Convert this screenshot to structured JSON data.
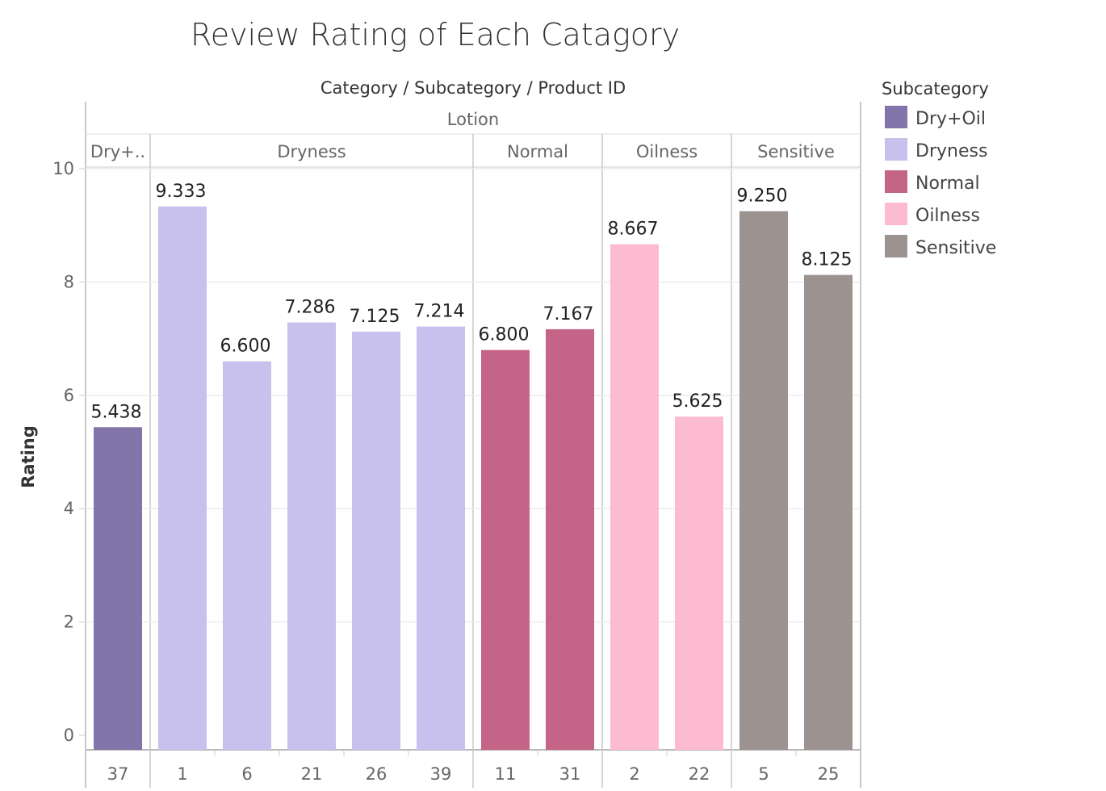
{
  "chart_data": {
    "type": "bar",
    "title": "Review Rating of Each Catagory",
    "column_header": "Category / Subcategory / Product ID",
    "category": "Lotion",
    "subcategory_labels": [
      "Dry+..",
      "Dryness",
      "Normal",
      "Oilness",
      "Sensitive"
    ],
    "ylabel": "Rating",
    "ylim": [
      0,
      10
    ],
    "yticks": [
      0,
      2,
      4,
      6,
      8,
      10
    ],
    "grid": true,
    "legend_position": "right",
    "bars": [
      {
        "product_id": "37",
        "subcategory": "Dry+Oil",
        "value": 5.438,
        "label": "5.438"
      },
      {
        "product_id": "1",
        "subcategory": "Dryness",
        "value": 9.333,
        "label": "9.333"
      },
      {
        "product_id": "6",
        "subcategory": "Dryness",
        "value": 6.6,
        "label": "6.600"
      },
      {
        "product_id": "21",
        "subcategory": "Dryness",
        "value": 7.286,
        "label": "7.286"
      },
      {
        "product_id": "26",
        "subcategory": "Dryness",
        "value": 7.125,
        "label": "7.125"
      },
      {
        "product_id": "39",
        "subcategory": "Dryness",
        "value": 7.214,
        "label": "7.214"
      },
      {
        "product_id": "11",
        "subcategory": "Normal",
        "value": 6.8,
        "label": "6.800"
      },
      {
        "product_id": "31",
        "subcategory": "Normal",
        "value": 7.167,
        "label": "7.167"
      },
      {
        "product_id": "2",
        "subcategory": "Oilness",
        "value": 8.667,
        "label": "8.667"
      },
      {
        "product_id": "22",
        "subcategory": "Oilness",
        "value": 5.625,
        "label": "5.625"
      },
      {
        "product_id": "5",
        "subcategory": "Sensitive",
        "value": 9.25,
        "label": "9.250"
      },
      {
        "product_id": "25",
        "subcategory": "Sensitive",
        "value": 8.125,
        "label": "8.125"
      }
    ],
    "legend": {
      "title": "Subcategory",
      "items": [
        {
          "name": "Dry+Oil",
          "color": "#8175a9"
        },
        {
          "name": "Dryness",
          "color": "#c8c1ee"
        },
        {
          "name": "Normal",
          "color": "#c46487"
        },
        {
          "name": "Oilness",
          "color": "#fcbbd0"
        },
        {
          "name": "Sensitive",
          "color": "#9c9290"
        }
      ]
    }
  }
}
